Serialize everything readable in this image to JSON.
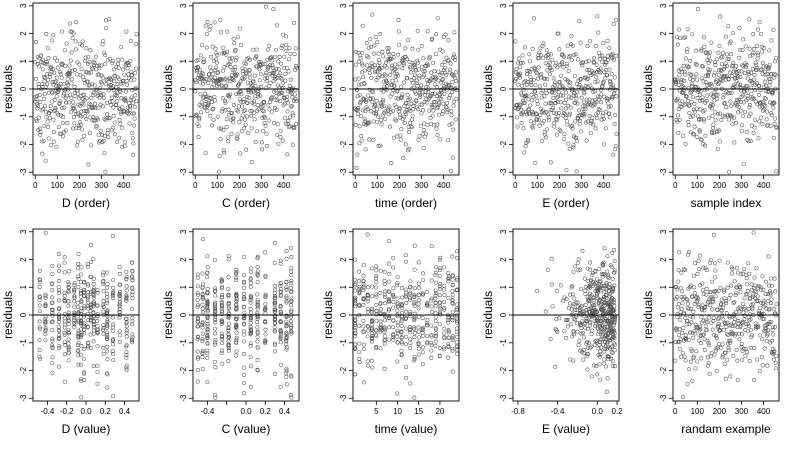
{
  "chart_data": {
    "type": "scatter",
    "layout": {
      "rows": 2,
      "cols": 5
    },
    "ylabel": "residuals",
    "ylim": [
      -3.1,
      3.1
    ],
    "yticks": [
      -3,
      -2,
      -1,
      0,
      1,
      2,
      3
    ],
    "yticklabels": [
      "-3",
      "-2",
      "-1",
      "0",
      "1",
      "2",
      "3"
    ],
    "reference_line_y": 0,
    "marker": {
      "shape": "open-circle",
      "color": "#555555"
    },
    "panels": [
      {
        "xlabel": "D (order)",
        "x_kind": "index",
        "n": 460,
        "xlim": [
          -10,
          470
        ],
        "xticks": [
          0,
          100,
          200,
          300,
          400
        ],
        "xticklabels": [
          "0",
          "100",
          "200",
          "300",
          "400"
        ],
        "trend": -0.28
      },
      {
        "xlabel": "C (order)",
        "x_kind": "index",
        "n": 460,
        "xlim": [
          -10,
          470
        ],
        "xticks": [
          0,
          100,
          200,
          300,
          400
        ],
        "xticklabels": [
          "0",
          "100",
          "200",
          "300",
          "400"
        ],
        "trend": 0
      },
      {
        "xlabel": "time (order)",
        "x_kind": "index",
        "n": 460,
        "xlim": [
          -10,
          470
        ],
        "xticks": [
          0,
          100,
          200,
          300,
          400
        ],
        "xticklabels": [
          "0",
          "100",
          "200",
          "300",
          "400"
        ],
        "trend": 0
      },
      {
        "xlabel": "E (order)",
        "x_kind": "index",
        "n": 460,
        "xlim": [
          -10,
          470
        ],
        "xticks": [
          0,
          100,
          200,
          300,
          400
        ],
        "xticklabels": [
          "0",
          "100",
          "200",
          "300",
          "400"
        ],
        "trend": 0
      },
      {
        "xlabel": "sample index",
        "x_kind": "index",
        "n": 460,
        "xlim": [
          -10,
          470
        ],
        "xticks": [
          0,
          100,
          200,
          300,
          400
        ],
        "xticklabels": [
          "0",
          "100",
          "200",
          "300",
          "400"
        ],
        "trend": 0
      },
      {
        "xlabel": "D (value)",
        "x_kind": "clustered",
        "n": 460,
        "xlim": [
          -0.55,
          0.55
        ],
        "xticks": [
          -0.4,
          -0.2,
          0.0,
          0.2,
          0.4
        ],
        "xticklabels": [
          "-0.4",
          "-0.2",
          "0.0",
          "0.2",
          "0.4"
        ],
        "x_values": [
          -0.48,
          -0.42,
          -0.35,
          -0.28,
          -0.22,
          -0.18,
          -0.12,
          -0.08,
          -0.05,
          -0.02,
          0.02,
          0.05,
          0.08,
          0.12,
          0.18,
          0.22,
          0.28,
          0.35,
          0.42,
          0.48
        ]
      },
      {
        "xlabel": "C (value)",
        "x_kind": "clustered",
        "n": 460,
        "xlim": [
          -0.55,
          0.55
        ],
        "xticks": [
          -0.4,
          -0.2,
          0.0,
          0.2,
          0.4
        ],
        "xticklabels": [
          "-0.4",
          "",
          "0.0",
          "0.2",
          "0.4"
        ],
        "x_values": [
          -0.5,
          -0.45,
          -0.4,
          -0.32,
          -0.25,
          -0.18,
          -0.1,
          -0.02,
          0.05,
          0.12,
          0.2,
          0.3,
          0.36,
          0.42,
          0.47
        ]
      },
      {
        "xlabel": "time (value)",
        "x_kind": "clustered",
        "n": 460,
        "xlim": [
          -0.5,
          24.5
        ],
        "xticks": [
          5,
          10,
          15,
          20
        ],
        "xticklabels": [
          "5",
          "10",
          "15",
          "20"
        ],
        "x_values": [
          0,
          1,
          2,
          3,
          4,
          5,
          6,
          7,
          8,
          9,
          10,
          11,
          12,
          13,
          14,
          15,
          16,
          17,
          18,
          19,
          20,
          21,
          22,
          23,
          24
        ]
      },
      {
        "xlabel": "E (value)",
        "x_kind": "skewed",
        "n": 460,
        "xlim": [
          -0.85,
          0.22
        ],
        "xticks": [
          -0.8,
          -0.4,
          0.0,
          0.2
        ],
        "xticklabels": [
          "-0.8",
          "-0.4",
          "0.0",
          "0.2"
        ]
      },
      {
        "xlabel": "randam example",
        "x_kind": "index",
        "n": 460,
        "xlim": [
          -10,
          470
        ],
        "xticks": [
          0,
          100,
          200,
          300,
          400
        ],
        "xticklabels": [
          "0",
          "100",
          "200",
          "300",
          "400"
        ],
        "trend": 0
      }
    ]
  }
}
